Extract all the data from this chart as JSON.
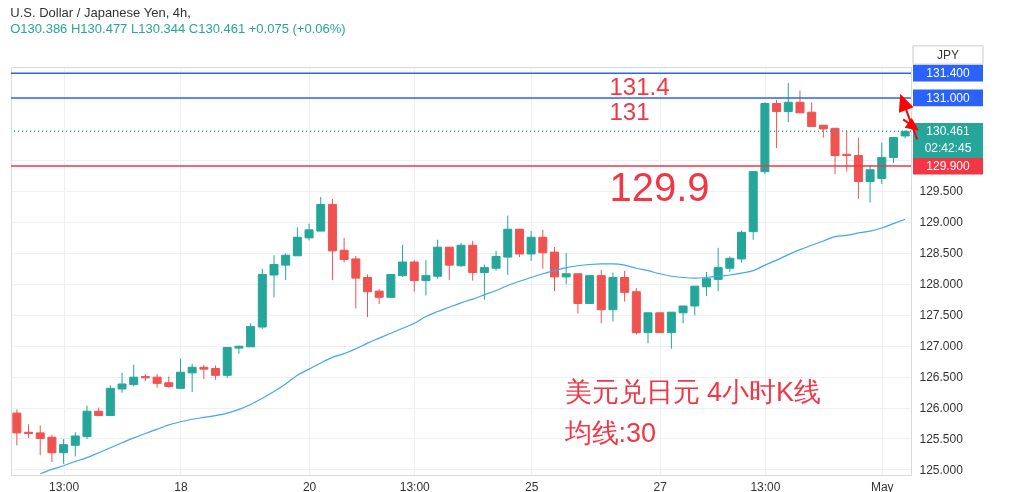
{
  "chart_data": {
    "type": "candlestick",
    "title": "U.S. Dollar / Japanese Yen, 4h,",
    "subtitle": "O130.386 H130.477 L130.344 C130.461 +0.075 (+0.06%)",
    "categories": [
      null,
      null,
      null,
      null,
      "13:00",
      null,
      null,
      null,
      null,
      null,
      null,
      null,
      null,
      null,
      "18",
      null,
      null,
      null,
      null,
      null,
      null,
      null,
      null,
      null,
      null,
      "20",
      null,
      null,
      null,
      null,
      null,
      null,
      null,
      null,
      "13:00",
      null,
      null,
      null,
      null,
      null,
      null,
      null,
      null,
      null,
      "25",
      null,
      null,
      null,
      null,
      null,
      null,
      null,
      null,
      null,
      null,
      "27",
      null,
      null,
      null,
      null,
      null,
      null,
      null,
      null,
      "13:00",
      null,
      null,
      null,
      null,
      null,
      null,
      null,
      null,
      null,
      "May",
      null,
      null
    ],
    "ohlc": [
      [
        125.91,
        125.97,
        125.39,
        125.59
      ],
      [
        125.6,
        125.73,
        125.51,
        125.58
      ],
      [
        125.59,
        125.71,
        125.23,
        125.5
      ],
      [
        125.52,
        125.56,
        125.12,
        125.27
      ],
      [
        125.27,
        125.49,
        125.09,
        125.4
      ],
      [
        125.39,
        125.6,
        125.21,
        125.54
      ],
      [
        125.53,
        126.03,
        125.49,
        125.94
      ],
      [
        125.94,
        126.0,
        125.87,
        125.87
      ],
      [
        125.87,
        126.36,
        125.87,
        126.31
      ],
      [
        126.3,
        126.56,
        126.24,
        126.38
      ],
      [
        126.37,
        126.69,
        126.34,
        126.49
      ],
      [
        126.5,
        126.54,
        126.43,
        126.48
      ],
      [
        126.49,
        126.54,
        126.32,
        126.39
      ],
      [
        126.4,
        126.5,
        126.32,
        126.34
      ],
      [
        126.31,
        126.79,
        126.31,
        126.57
      ],
      [
        126.56,
        126.71,
        126.25,
        126.65
      ],
      [
        126.65,
        126.69,
        126.46,
        126.62
      ],
      [
        126.63,
        126.68,
        126.45,
        126.52
      ],
      [
        126.52,
        126.97,
        126.48,
        126.97
      ],
      [
        126.96,
        127.0,
        126.87,
        126.99
      ],
      [
        126.98,
        127.36,
        126.98,
        127.31
      ],
      [
        127.3,
        128.24,
        127.27,
        128.15
      ],
      [
        128.14,
        128.46,
        127.78,
        128.31
      ],
      [
        128.3,
        128.49,
        128.06,
        128.46
      ],
      [
        128.45,
        128.91,
        128.45,
        128.75
      ],
      [
        128.74,
        128.97,
        128.7,
        128.87
      ],
      [
        128.85,
        129.4,
        128.85,
        129.28
      ],
      [
        129.28,
        129.37,
        128.06,
        128.53
      ],
      [
        128.54,
        128.74,
        128.34,
        128.39
      ],
      [
        128.4,
        128.45,
        127.6,
        128.09
      ],
      [
        128.1,
        128.15,
        127.46,
        127.87
      ],
      [
        127.88,
        127.91,
        127.67,
        127.78
      ],
      [
        127.78,
        128.15,
        127.78,
        128.15
      ],
      [
        128.13,
        128.63,
        128.11,
        128.35
      ],
      [
        128.35,
        128.38,
        127.87,
        128.05
      ],
      [
        128.05,
        128.38,
        127.81,
        128.13
      ],
      [
        128.12,
        128.71,
        128.08,
        128.59
      ],
      [
        128.59,
        128.59,
        128.06,
        128.3
      ],
      [
        128.29,
        128.66,
        128.27,
        128.62
      ],
      [
        128.62,
        128.69,
        128.05,
        128.18
      ],
      [
        128.18,
        128.31,
        127.74,
        128.26
      ],
      [
        128.25,
        128.53,
        128.21,
        128.44
      ],
      [
        128.43,
        129.1,
        128.14,
        128.88
      ],
      [
        128.88,
        128.88,
        128.43,
        128.48
      ],
      [
        128.48,
        128.85,
        128.37,
        128.75
      ],
      [
        128.75,
        128.87,
        128.24,
        128.5
      ],
      [
        128.51,
        128.59,
        127.88,
        128.11
      ],
      [
        128.11,
        128.5,
        127.99,
        128.16
      ],
      [
        128.16,
        128.16,
        127.52,
        127.68
      ],
      [
        127.68,
        128.13,
        127.68,
        128.13
      ],
      [
        128.13,
        128.22,
        127.36,
        127.58
      ],
      [
        127.58,
        128.18,
        127.39,
        128.1
      ],
      [
        128.1,
        128.21,
        127.71,
        127.86
      ],
      [
        127.87,
        127.93,
        127.18,
        127.21
      ],
      [
        127.21,
        127.53,
        127.04,
        127.53
      ],
      [
        127.53,
        127.53,
        127.21,
        127.21
      ],
      [
        127.21,
        127.54,
        126.95,
        127.54
      ],
      [
        127.53,
        127.64,
        127.36,
        127.64
      ],
      [
        127.64,
        127.96,
        127.49,
        127.96
      ],
      [
        127.95,
        128.19,
        127.8,
        128.08
      ],
      [
        128.07,
        128.58,
        127.88,
        128.26
      ],
      [
        128.25,
        128.44,
        128.19,
        128.41
      ],
      [
        128.4,
        128.86,
        128.34,
        128.83
      ],
      [
        128.84,
        129.81,
        128.71,
        129.81
      ],
      [
        129.81,
        130.93,
        129.77,
        130.91
      ],
      [
        130.91,
        130.97,
        130.19,
        130.78
      ],
      [
        130.78,
        131.24,
        130.61,
        130.93
      ],
      [
        130.93,
        131.12,
        130.76,
        130.76
      ],
      [
        130.77,
        130.93,
        130.53,
        130.54
      ],
      [
        130.56,
        130.56,
        130.36,
        130.5
      ],
      [
        130.51,
        130.51,
        129.77,
        130.07
      ],
      [
        130.09,
        130.48,
        129.81,
        130.07
      ],
      [
        130.07,
        130.36,
        129.37,
        129.65
      ],
      [
        129.65,
        129.91,
        129.31,
        129.84
      ],
      [
        129.7,
        130.28,
        129.61,
        130.04
      ],
      [
        130.04,
        130.37,
        129.95,
        130.36
      ],
      [
        130.386,
        130.477,
        130.344,
        130.461
      ]
    ],
    "colors": [
      "#ef5350",
      "#ef5350",
      "#ef5350",
      "#ef5350",
      "#26a69a",
      "#26a69a",
      "#26a69a",
      "#ef5350",
      "#26a69a",
      "#26a69a",
      "#26a69a",
      "#ef5350",
      "#ef5350",
      "#ef5350",
      "#26a69a",
      "#26a69a",
      "#ef5350",
      "#ef5350",
      "#26a69a",
      "#26a69a",
      "#26a69a",
      "#26a69a",
      "#26a69a",
      "#26a69a",
      "#26a69a",
      "#26a69a",
      "#26a69a",
      "#ef5350",
      "#ef5350",
      "#ef5350",
      "#ef5350",
      "#ef5350",
      "#26a69a",
      "#26a69a",
      "#ef5350",
      "#26a69a",
      "#26a69a",
      "#ef5350",
      "#26a69a",
      "#ef5350",
      "#26a69a",
      "#26a69a",
      "#26a69a",
      "#ef5350",
      "#26a69a",
      "#ef5350",
      "#ef5350",
      "#26a69a",
      "#ef5350",
      "#26a69a",
      "#ef5350",
      "#26a69a",
      "#ef5350",
      "#ef5350",
      "#26a69a",
      "#ef5350",
      "#26a69a",
      "#26a69a",
      "#26a69a",
      "#26a69a",
      "#26a69a",
      "#26a69a",
      "#26a69a",
      "#26a69a",
      "#26a69a",
      "#ef5350",
      "#26a69a",
      "#ef5350",
      "#ef5350",
      "#ef5350",
      "#ef5350",
      "#ef5350",
      "#ef5350",
      "#26a69a",
      "#26a69a",
      "#26a69a",
      "#26a69a"
    ],
    "series": [
      {
        "type": "line",
        "color": "#42a5f5",
        "values": [
          null,
          null,
          124.93,
          125.0,
          125.06,
          125.13,
          125.19,
          125.27,
          125.35,
          125.43,
          125.51,
          125.58,
          125.65,
          125.72,
          125.77,
          125.81,
          125.84,
          125.87,
          125.91,
          125.97,
          126.05,
          126.15,
          126.26,
          126.38,
          126.52,
          126.62,
          126.72,
          126.81,
          126.87,
          126.95,
          127.04,
          127.12,
          127.2,
          127.28,
          127.36,
          127.47,
          127.55,
          127.62,
          127.69,
          127.75,
          127.82,
          127.89,
          127.97,
          128.04,
          128.1,
          128.16,
          128.21,
          128.26,
          128.29,
          128.31,
          128.32,
          128.32,
          128.3,
          128.25,
          128.21,
          128.16,
          128.12,
          128.1,
          128.09,
          128.1,
          128.12,
          128.14,
          128.17,
          128.21,
          128.3,
          128.38,
          128.47,
          128.55,
          128.62,
          128.69,
          128.76,
          128.78,
          128.82,
          128.85,
          128.9,
          128.97,
          129.04
        ]
      }
    ],
    "ylim": [
      124.91,
      131.5
    ],
    "yticks": [
      {
        "value": 125,
        "label": "125.000"
      },
      {
        "value": 125.5,
        "label": "125.500"
      },
      {
        "value": 126,
        "label": "126.000"
      },
      {
        "value": 126.5,
        "label": "126.500"
      },
      {
        "value": 127,
        "label": "127.000"
      },
      {
        "value": 127.5,
        "label": "127.500"
      },
      {
        "value": 128,
        "label": "128.000"
      },
      {
        "value": 128.5,
        "label": "128.500"
      },
      {
        "value": 129,
        "label": "129.000"
      },
      {
        "value": 129.5,
        "label": "129.500"
      },
      {
        "value": 130,
        "label": null
      }
    ],
    "grid": true,
    "ref_lines": [
      {
        "axis": "y",
        "value": 131.4,
        "label": "131.400",
        "color": "#2962ff"
      },
      {
        "axis": "y",
        "value": 131,
        "label": "131.000",
        "color": "#2962ff"
      },
      {
        "axis": "y",
        "value": 129.9,
        "label": "129.900",
        "color": "#f23645"
      },
      {
        "axis": "y",
        "value": 130.461,
        "label": "130.461",
        "color": "#26a69a",
        "line_style": "dotted"
      }
    ],
    "annotations": [
      {
        "text": "131.4",
        "y": 131.4
      },
      {
        "text": "131",
        "y": 131
      },
      {
        "text": "129.9",
        "y": 129.9
      },
      "美元兑日元 4小时K线",
      "均线:30",
      "JPY",
      "02:42:45"
    ]
  }
}
